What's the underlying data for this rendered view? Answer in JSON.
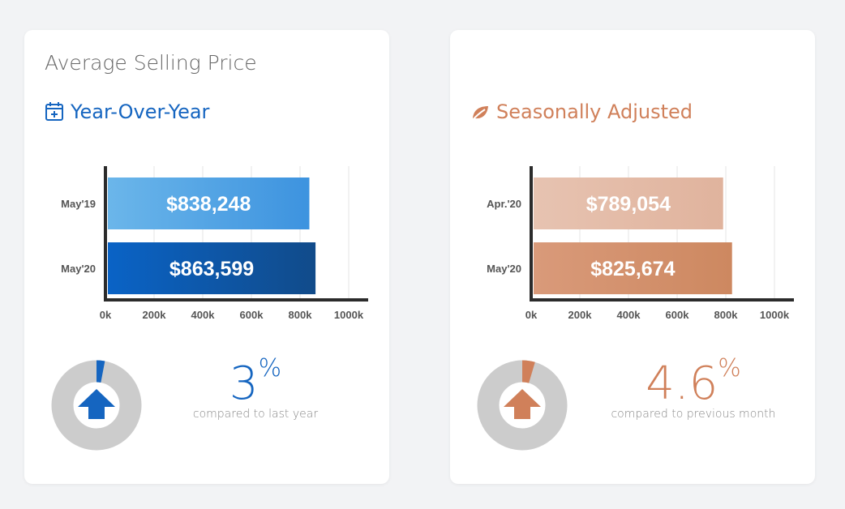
{
  "cards": [
    {
      "title": "Average Selling Price",
      "section": "Year-Over-Year",
      "accent": "#1565c0",
      "icon": "calendar-plus-icon",
      "change": {
        "value": "3",
        "symbol": "%",
        "caption": "compared to last year",
        "fraction": 0.03
      }
    },
    {
      "title": "",
      "section": "Seasonally Adjusted",
      "accent": "#d0805a",
      "icon": "leaf-icon",
      "change": {
        "value": "4.6",
        "symbol": "%",
        "caption": "compared to previous month",
        "fraction": 0.046
      }
    }
  ],
  "chart_data": [
    {
      "type": "bar",
      "orientation": "horizontal",
      "categories": [
        "May'19",
        "May'20"
      ],
      "values": [
        838248,
        863599
      ],
      "value_labels": [
        "$838,248",
        "$863,599"
      ],
      "xlim": [
        0,
        1000000
      ],
      "x_ticks": [
        "0k",
        "200k",
        "400k",
        "600k",
        "800k",
        "1000k"
      ],
      "grid": true,
      "colors": [
        [
          "#6bb6ea",
          "#3d93df"
        ],
        [
          "#0a63c6",
          "#114b8a"
        ]
      ]
    },
    {
      "type": "bar",
      "orientation": "horizontal",
      "categories": [
        "Apr.'20",
        "May'20"
      ],
      "values": [
        789054,
        825674
      ],
      "value_labels": [
        "$789,054",
        "$825,674"
      ],
      "xlim": [
        0,
        1000000
      ],
      "x_ticks": [
        "0k",
        "200k",
        "400k",
        "600k",
        "800k",
        "1000k"
      ],
      "grid": true,
      "colors": [
        [
          "#e7c3b1",
          "#e0b39d"
        ],
        [
          "#d99a7a",
          "#cd8860"
        ]
      ]
    }
  ]
}
